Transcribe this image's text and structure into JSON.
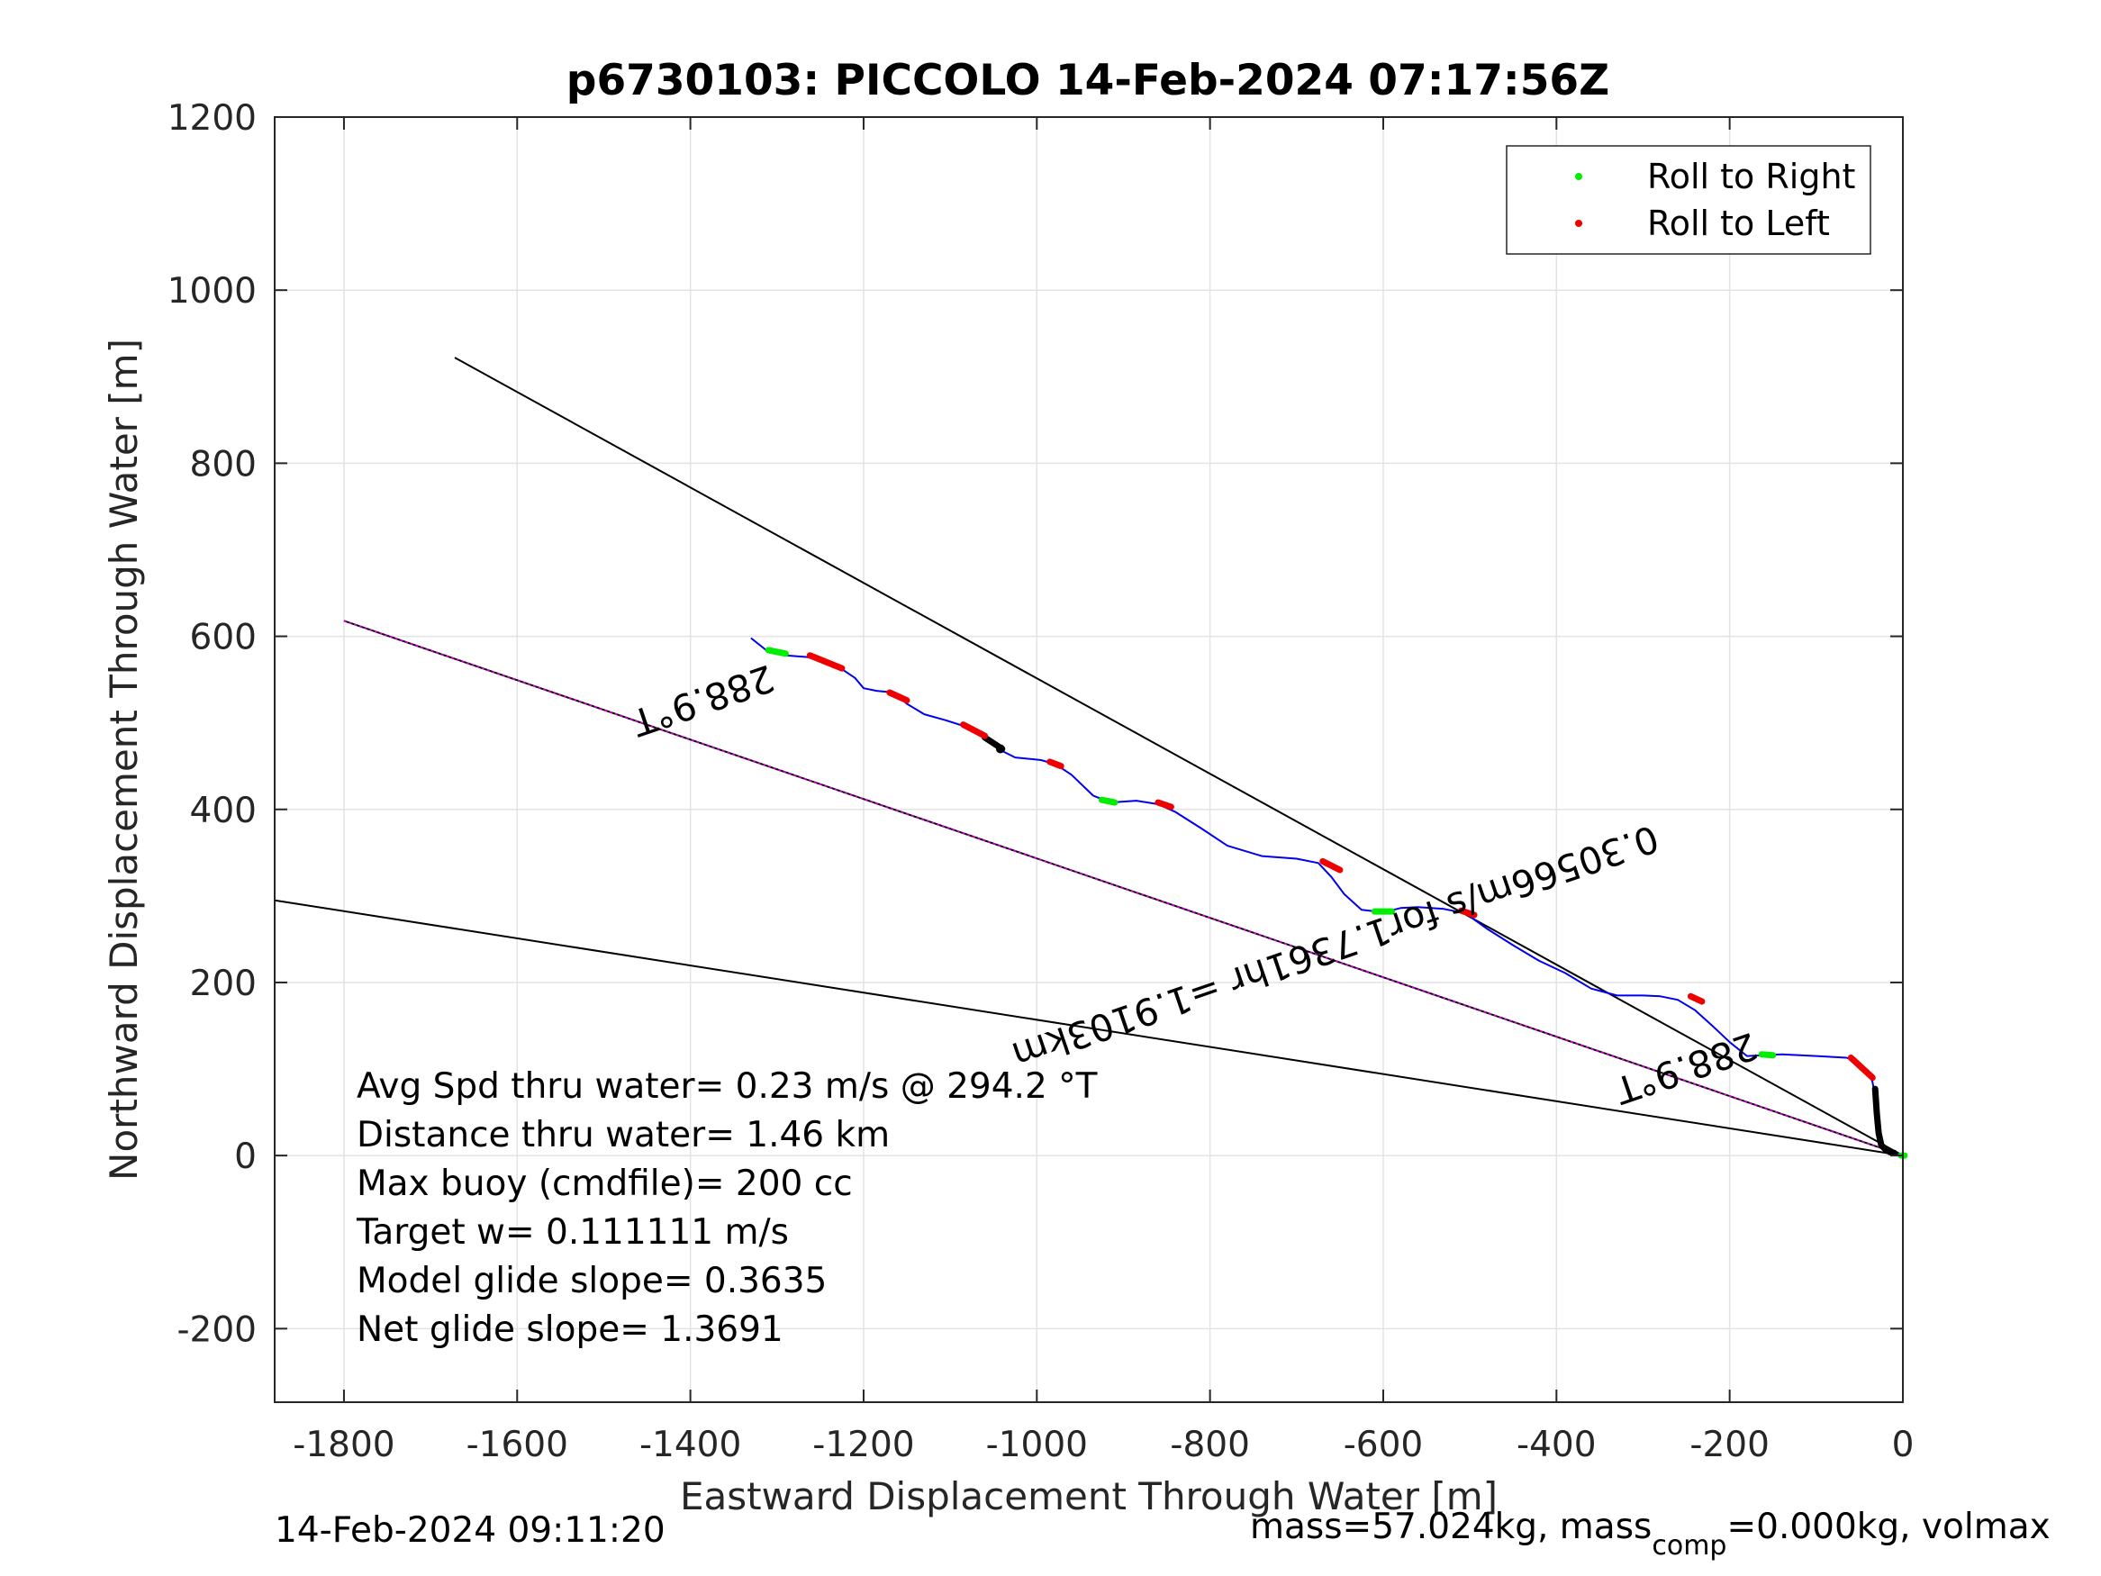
{
  "chart_data": {
    "type": "line",
    "title": "p6730103: PICCOLO 14-Feb-2024 07:17:56Z",
    "xlabel": "Eastward Displacement Through Water [m]",
    "ylabel": "Northward Displacement Through Water [m]",
    "xlim": [
      -1880,
      0
    ],
    "ylim": [
      -285,
      1200
    ],
    "grid": true,
    "x_ticks": [
      -1800,
      -1600,
      -1400,
      -1200,
      -1000,
      -800,
      -600,
      -400,
      -200,
      0
    ],
    "y_ticks": [
      -200,
      0,
      200,
      400,
      600,
      800,
      1000,
      1200
    ],
    "x_tick_labels": [
      "-1800",
      "-1600",
      "-1400",
      "-1200",
      "-1000",
      "-800",
      "-600",
      "-400",
      "-200",
      "0"
    ],
    "y_tick_labels": [
      "-200",
      "0",
      "200",
      "400",
      "600",
      "800",
      "1000",
      "1200"
    ],
    "legend": {
      "placement": "top-right",
      "entries": [
        {
          "label": "Roll to Right",
          "color": "#00ee00"
        },
        {
          "label": "Roll to Left",
          "color": "#ee0000"
        }
      ]
    },
    "colors": {
      "track": "#0000ee",
      "reference_lines": "#000000",
      "heading_line": "#cc00cc",
      "roll_right": "#00ee00",
      "roll_left": "#ee0000",
      "grid": "#e3e3e3"
    },
    "track": {
      "x": [
        -1330,
        -1310,
        -1290,
        -1265,
        -1245,
        -1225,
        -1210,
        -1200,
        -1185,
        -1165,
        -1150,
        -1130,
        -1105,
        -1080,
        -1060,
        -1045,
        -1025,
        -995,
        -978,
        -960,
        -935,
        -915,
        -885,
        -860,
        -840,
        -810,
        -780,
        -740,
        -700,
        -675,
        -660,
        -645,
        -625,
        -600,
        -580,
        -560,
        -530,
        -505,
        -480,
        -450,
        -420,
        -390,
        -360,
        -330,
        -300,
        -280,
        -260,
        -240,
        -220,
        -200,
        -180,
        -160,
        -140,
        -100,
        -65,
        -50,
        -40,
        -35,
        -32,
        -30,
        -29,
        -28,
        -27,
        -25,
        -20,
        -15,
        -10,
        -5,
        0
      ],
      "y": [
        598,
        582,
        578,
        576,
        570,
        562,
        552,
        540,
        537,
        535,
        522,
        510,
        503,
        495,
        482,
        470,
        460,
        457,
        452,
        440,
        416,
        408,
        410,
        406,
        397,
        378,
        358,
        346,
        343,
        338,
        322,
        302,
        284,
        281,
        286,
        287,
        285,
        280,
        262,
        243,
        225,
        211,
        193,
        185,
        185,
        184,
        180,
        168,
        150,
        131,
        115,
        116,
        117,
        115,
        113,
        107,
        98,
        85,
        68,
        48,
        36,
        26,
        18,
        12,
        8,
        5,
        3,
        1,
        0
      ]
    },
    "roll_right_segments": [
      {
        "x": [
          -1310,
          -1290
        ],
        "y": [
          584,
          580
        ]
      },
      {
        "x": [
          -925,
          -910
        ],
        "y": [
          411,
          408
        ]
      },
      {
        "x": [
          -610,
          -590
        ],
        "y": [
          282,
          282
        ]
      },
      {
        "x": [
          -163,
          -150
        ],
        "y": [
          117,
          116
        ]
      },
      {
        "x": [
          -2,
          2
        ],
        "y": [
          0,
          0
        ]
      }
    ],
    "roll_left_segments": [
      {
        "x": [
          -1262,
          -1225
        ],
        "y": [
          578,
          563
        ]
      },
      {
        "x": [
          -1170,
          -1150
        ],
        "y": [
          535,
          526
        ]
      },
      {
        "x": [
          -1085,
          -1060
        ],
        "y": [
          498,
          485
        ]
      },
      {
        "x": [
          -985,
          -972
        ],
        "y": [
          455,
          450
        ]
      },
      {
        "x": [
          -860,
          -845
        ],
        "y": [
          408,
          403
        ]
      },
      {
        "x": [
          -670,
          -650
        ],
        "y": [
          340,
          330
        ]
      },
      {
        "x": [
          -510,
          -495
        ],
        "y": [
          283,
          278
        ]
      },
      {
        "x": [
          -245,
          -232
        ],
        "y": [
          184,
          178
        ]
      },
      {
        "x": [
          -60,
          -35
        ],
        "y": [
          113,
          90
        ]
      }
    ],
    "black_segments": [
      {
        "x": [
          -1060,
          -1040
        ],
        "y": [
          483,
          470
        ]
      },
      {
        "x": [
          -32,
          -30,
          -28,
          -25,
          -20,
          -15,
          -10
        ],
        "y": [
          77,
          48,
          26,
          12,
          7,
          4,
          3
        ]
      }
    ],
    "reference_lines": [
      {
        "x": [
          -1672,
          0
        ],
        "y": [
          922,
          0
        ]
      },
      {
        "x": [
          -1880,
          0
        ],
        "y": [
          295,
          0
        ]
      }
    ],
    "heading_line": {
      "x": [
        -1800,
        0
      ],
      "y": [
        618,
        0
      ]
    },
    "annotations": [
      {
        "text": "288.9°T",
        "x": -1390,
        "y": 540,
        "rotation": 161.1
      },
      {
        "text": "288.9°T",
        "x": -255,
        "y": 115,
        "rotation": 161.1
      },
      {
        "text": "0.30566m/s for1.7361hr =1.9103km",
        "x": -660,
        "y": 255,
        "rotation": 161.1
      }
    ],
    "stats_lines": [
      "Avg Spd thru water=  0.23 m/s @ 294.2 °T",
      "Distance thru water=  1.46 km",
      "Max buoy (cmdfile)= 200 cc",
      "Target w= 0.111111 m/s",
      "Model glide slope= 0.3635",
      "Net glide slope= 1.3691"
    ]
  },
  "footer": {
    "timestamp": "14-Feb-2024 09:11:20",
    "mass_prefix": "mass=57.024kg, mass",
    "mass_subscript": "comp",
    "mass_suffix": "=0.000kg, volmax"
  }
}
